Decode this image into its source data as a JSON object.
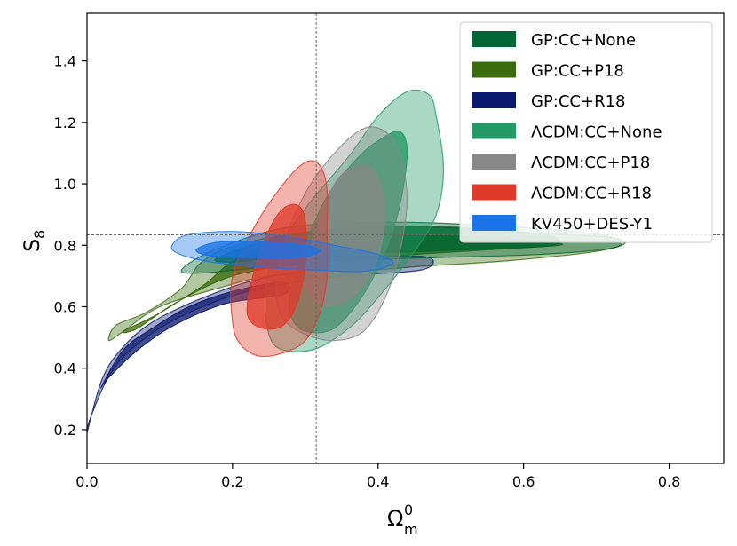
{
  "chart_data": {
    "type": "contour",
    "title": "",
    "xlabel": "Ω",
    "xlabel_sup": "0",
    "xlabel_sub": "m",
    "ylabel": "S",
    "ylabel_sub": "8",
    "xlim": [
      0.0,
      0.875
    ],
    "ylim": [
      0.09,
      1.555
    ],
    "xticks": [
      0.0,
      0.2,
      0.4,
      0.6,
      0.8
    ],
    "xtick_labels": [
      "0.0",
      "0.2",
      "0.4",
      "0.6",
      "0.8"
    ],
    "yticks": [
      0.2,
      0.4,
      0.6,
      0.8,
      1.0,
      1.2,
      1.4
    ],
    "ytick_labels": [
      "0.2",
      "0.4",
      "0.6",
      "0.8",
      "1.0",
      "1.2",
      "1.4"
    ],
    "reference_lines": {
      "x": 0.315,
      "y": 0.834
    },
    "legend_position": "top-right",
    "series": [
      {
        "name": "GP:CC+P18",
        "color": "#3a6b0c",
        "outer": [
          [
            0.04,
            0.54
          ],
          [
            0.08,
            0.58
          ],
          [
            0.13,
            0.66
          ],
          [
            0.16,
            0.75
          ],
          [
            0.22,
            0.81
          ],
          [
            0.35,
            0.855
          ],
          [
            0.5,
            0.86
          ],
          [
            0.6,
            0.84
          ],
          [
            0.7,
            0.83
          ],
          [
            0.74,
            0.81
          ],
          [
            0.7,
            0.78
          ],
          [
            0.58,
            0.75
          ],
          [
            0.45,
            0.73
          ],
          [
            0.35,
            0.71
          ],
          [
            0.25,
            0.7
          ],
          [
            0.18,
            0.66
          ],
          [
            0.1,
            0.6
          ],
          [
            0.05,
            0.52
          ],
          [
            0.03,
            0.49
          ]
        ],
        "inner": [
          [
            0.05,
            0.52
          ],
          [
            0.1,
            0.58
          ],
          [
            0.16,
            0.67
          ],
          [
            0.22,
            0.77
          ],
          [
            0.35,
            0.825
          ],
          [
            0.5,
            0.83
          ],
          [
            0.62,
            0.815
          ],
          [
            0.65,
            0.8
          ],
          [
            0.55,
            0.785
          ],
          [
            0.42,
            0.765
          ],
          [
            0.3,
            0.74
          ],
          [
            0.2,
            0.7
          ],
          [
            0.12,
            0.61
          ],
          [
            0.07,
            0.53
          ]
        ]
      },
      {
        "name": "GP:CC+R18",
        "color": "#0b1a6e",
        "outer": [
          [
            -0.005,
            0.14
          ],
          [
            0.02,
            0.36
          ],
          [
            0.05,
            0.47
          ],
          [
            0.09,
            0.55
          ],
          [
            0.15,
            0.62
          ],
          [
            0.22,
            0.68
          ],
          [
            0.3,
            0.72
          ],
          [
            0.4,
            0.76
          ],
          [
            0.47,
            0.76
          ],
          [
            0.46,
            0.72
          ],
          [
            0.36,
            0.7
          ],
          [
            0.26,
            0.67
          ],
          [
            0.18,
            0.62
          ],
          [
            0.1,
            0.53
          ],
          [
            0.04,
            0.41
          ],
          [
            0.005,
            0.24
          ]
        ],
        "inner": [
          [
            0.02,
            0.34
          ],
          [
            0.05,
            0.46
          ],
          [
            0.09,
            0.53
          ],
          [
            0.14,
            0.6
          ],
          [
            0.2,
            0.65
          ],
          [
            0.27,
            0.68
          ],
          [
            0.27,
            0.64
          ],
          [
            0.19,
            0.61
          ],
          [
            0.12,
            0.54
          ],
          [
            0.07,
            0.46
          ],
          [
            0.03,
            0.37
          ]
        ]
      },
      {
        "name": "GP:CC+None",
        "color": "#006633",
        "outer": [
          [
            0.13,
            0.72
          ],
          [
            0.18,
            0.79
          ],
          [
            0.28,
            0.86
          ],
          [
            0.42,
            0.875
          ],
          [
            0.55,
            0.865
          ],
          [
            0.67,
            0.845
          ],
          [
            0.73,
            0.82
          ],
          [
            0.72,
            0.79
          ],
          [
            0.62,
            0.77
          ],
          [
            0.48,
            0.76
          ],
          [
            0.36,
            0.75
          ],
          [
            0.25,
            0.73
          ],
          [
            0.16,
            0.71
          ]
        ],
        "inner": [
          [
            0.18,
            0.76
          ],
          [
            0.27,
            0.83
          ],
          [
            0.4,
            0.86
          ],
          [
            0.52,
            0.855
          ],
          [
            0.63,
            0.835
          ],
          [
            0.64,
            0.8
          ],
          [
            0.52,
            0.785
          ],
          [
            0.4,
            0.775
          ],
          [
            0.28,
            0.765
          ],
          [
            0.2,
            0.745
          ]
        ]
      },
      {
        "name": "ΛCDM:CC+None",
        "color": "#229966",
        "outer": [
          [
            0.25,
            0.72
          ],
          [
            0.27,
            0.82
          ],
          [
            0.31,
            0.95
          ],
          [
            0.36,
            1.09
          ],
          [
            0.4,
            1.22
          ],
          [
            0.44,
            1.3
          ],
          [
            0.47,
            1.29
          ],
          [
            0.48,
            1.22
          ],
          [
            0.49,
            1.05
          ],
          [
            0.48,
            0.9
          ],
          [
            0.45,
            0.78
          ],
          [
            0.4,
            0.63
          ],
          [
            0.36,
            0.53
          ],
          [
            0.31,
            0.46
          ],
          [
            0.26,
            0.47
          ],
          [
            0.245,
            0.58
          ]
        ],
        "inner": [
          [
            0.28,
            0.65
          ],
          [
            0.3,
            0.8
          ],
          [
            0.33,
            0.96
          ],
          [
            0.37,
            1.08
          ],
          [
            0.4,
            1.14
          ],
          [
            0.43,
            1.17
          ],
          [
            0.44,
            1.1
          ],
          [
            0.43,
            0.93
          ],
          [
            0.41,
            0.78
          ],
          [
            0.38,
            0.64
          ],
          [
            0.34,
            0.53
          ],
          [
            0.3,
            0.52
          ],
          [
            0.28,
            0.57
          ]
        ]
      },
      {
        "name": "ΛCDM:CC+P18",
        "color": "#888888",
        "outer": [
          [
            0.26,
            0.65
          ],
          [
            0.27,
            0.8
          ],
          [
            0.3,
            0.97
          ],
          [
            0.34,
            1.1
          ],
          [
            0.38,
            1.18
          ],
          [
            0.41,
            1.17
          ],
          [
            0.43,
            1.1
          ],
          [
            0.44,
            0.95
          ],
          [
            0.43,
            0.78
          ],
          [
            0.41,
            0.63
          ],
          [
            0.38,
            0.52
          ],
          [
            0.34,
            0.49
          ],
          [
            0.3,
            0.51
          ],
          [
            0.27,
            0.56
          ]
        ],
        "inner": [
          [
            0.3,
            0.68
          ],
          [
            0.31,
            0.82
          ],
          [
            0.33,
            0.95
          ],
          [
            0.35,
            1.03
          ],
          [
            0.38,
            1.06
          ],
          [
            0.4,
            1.02
          ],
          [
            0.41,
            0.9
          ],
          [
            0.4,
            0.76
          ],
          [
            0.38,
            0.67
          ],
          [
            0.35,
            0.61
          ],
          [
            0.32,
            0.61
          ]
        ]
      },
      {
        "name": "ΛCDM:CC+R18",
        "color": "#e03a2a",
        "outer": [
          [
            0.2,
            0.55
          ],
          [
            0.2,
            0.7
          ],
          [
            0.23,
            0.86
          ],
          [
            0.27,
            1.0
          ],
          [
            0.3,
            1.07
          ],
          [
            0.32,
            1.06
          ],
          [
            0.33,
            0.98
          ],
          [
            0.33,
            0.84
          ],
          [
            0.33,
            0.7
          ],
          [
            0.32,
            0.58
          ],
          [
            0.3,
            0.49
          ],
          [
            0.27,
            0.45
          ],
          [
            0.235,
            0.44
          ],
          [
            0.21,
            0.48
          ]
        ],
        "inner": [
          [
            0.22,
            0.58
          ],
          [
            0.23,
            0.72
          ],
          [
            0.25,
            0.85
          ],
          [
            0.27,
            0.92
          ],
          [
            0.29,
            0.93
          ],
          [
            0.3,
            0.88
          ],
          [
            0.3,
            0.75
          ],
          [
            0.29,
            0.62
          ],
          [
            0.27,
            0.54
          ],
          [
            0.24,
            0.53
          ]
        ]
      },
      {
        "name": "KV450+DES-Y1",
        "color": "#1a73e8",
        "outer": [
          [
            0.12,
            0.81
          ],
          [
            0.14,
            0.835
          ],
          [
            0.2,
            0.845
          ],
          [
            0.27,
            0.83
          ],
          [
            0.34,
            0.8
          ],
          [
            0.4,
            0.77
          ],
          [
            0.42,
            0.74
          ],
          [
            0.38,
            0.715
          ],
          [
            0.31,
            0.72
          ],
          [
            0.23,
            0.73
          ],
          [
            0.16,
            0.75
          ],
          [
            0.12,
            0.78
          ]
        ],
        "inner": [
          [
            0.15,
            0.785
          ],
          [
            0.18,
            0.81
          ],
          [
            0.24,
            0.81
          ],
          [
            0.3,
            0.8
          ],
          [
            0.32,
            0.78
          ],
          [
            0.29,
            0.76
          ],
          [
            0.22,
            0.76
          ],
          [
            0.17,
            0.765
          ]
        ]
      }
    ],
    "legend": [
      {
        "label": "GP:CC+None",
        "color": "#006633"
      },
      {
        "label": "GP:CC+P18",
        "color": "#3a6b0c"
      },
      {
        "label": "GP:CC+R18",
        "color": "#0b1a6e"
      },
      {
        "label": "ΛCDM:CC+None",
        "color": "#229966"
      },
      {
        "label": "ΛCDM:CC+P18",
        "color": "#888888"
      },
      {
        "label": "ΛCDM:CC+R18",
        "color": "#e03a2a"
      },
      {
        "label": "KV450+DES-Y1",
        "color": "#1a73e8"
      }
    ]
  }
}
